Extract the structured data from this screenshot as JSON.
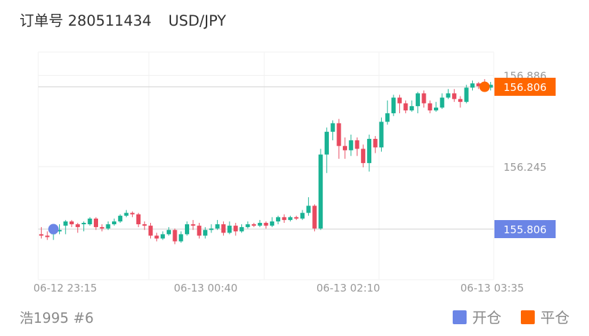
{
  "header": {
    "order_label": "订单号 280511434",
    "symbol": "USD/JPY"
  },
  "footer": {
    "user": "浩1995 #6"
  },
  "legend": {
    "open_label": "开仓",
    "open_color": "#6b85e6",
    "close_label": "平仓",
    "close_color": "#ff6600"
  },
  "chart_data": {
    "type": "candlestick",
    "x_ticks": [
      "06-12 23:15",
      "06-13 00:40",
      "06-13 02:10",
      "06-13 03:35"
    ],
    "y_tick_labels": [
      {
        "value": 156.886,
        "text": "156.886"
      },
      {
        "value": 156.245,
        "text": "156.245"
      }
    ],
    "price_tags": [
      {
        "value": 156.806,
        "text": "156.806",
        "color": "#ff6600",
        "kind": "close"
      },
      {
        "value": 155.806,
        "text": "155.806",
        "color": "#6b85e6",
        "kind": "open"
      }
    ],
    "ylim": [
      155.45,
      157.05
    ],
    "up_color": "#1ab394",
    "down_color": "#e84a5f",
    "open_marker": {
      "index": 2,
      "price": 155.806
    },
    "close_marker": {
      "index": 73,
      "price": 156.806
    },
    "candles": [
      [
        155.77,
        155.76,
        155.82,
        155.74
      ],
      [
        155.76,
        155.75,
        155.79,
        155.73
      ],
      [
        155.77,
        155.79,
        155.81,
        155.73
      ],
      [
        155.79,
        155.8,
        155.84,
        155.77
      ],
      [
        155.83,
        155.86,
        155.87,
        155.77
      ],
      [
        155.86,
        155.84,
        155.87,
        155.82
      ],
      [
        155.84,
        155.82,
        155.85,
        155.78
      ],
      [
        155.84,
        155.85,
        155.86,
        155.79
      ],
      [
        155.84,
        155.88,
        155.89,
        155.83
      ],
      [
        155.88,
        155.82,
        155.89,
        155.8
      ],
      [
        155.82,
        155.81,
        155.84,
        155.79
      ],
      [
        155.81,
        155.84,
        155.86,
        155.8
      ],
      [
        155.84,
        155.86,
        155.88,
        155.83
      ],
      [
        155.86,
        155.9,
        155.91,
        155.85
      ],
      [
        155.9,
        155.92,
        155.94,
        155.89
      ],
      [
        155.92,
        155.91,
        155.93,
        155.89
      ],
      [
        155.91,
        155.84,
        155.92,
        155.82
      ],
      [
        155.84,
        155.83,
        155.86,
        155.8
      ],
      [
        155.83,
        155.76,
        155.85,
        155.74
      ],
      [
        155.76,
        155.74,
        155.78,
        155.72
      ],
      [
        155.74,
        155.77,
        155.79,
        155.73
      ],
      [
        155.77,
        155.8,
        155.82,
        155.76
      ],
      [
        155.8,
        155.72,
        155.81,
        155.7
      ],
      [
        155.72,
        155.77,
        155.79,
        155.71
      ],
      [
        155.77,
        155.84,
        155.86,
        155.76
      ],
      [
        155.84,
        155.83,
        155.87,
        155.8
      ],
      [
        155.83,
        155.76,
        155.85,
        155.74
      ],
      [
        155.76,
        155.8,
        155.82,
        155.74
      ],
      [
        155.8,
        155.81,
        155.84,
        155.78
      ],
      [
        155.81,
        155.84,
        155.87,
        155.8
      ],
      [
        155.84,
        155.78,
        155.86,
        155.76
      ],
      [
        155.78,
        155.83,
        155.86,
        155.77
      ],
      [
        155.83,
        155.79,
        155.85,
        155.76
      ],
      [
        155.79,
        155.82,
        155.84,
        155.78
      ],
      [
        155.82,
        155.84,
        155.86,
        155.81
      ],
      [
        155.84,
        155.83,
        155.85,
        155.82
      ],
      [
        155.83,
        155.85,
        155.87,
        155.82
      ],
      [
        155.85,
        155.83,
        155.86,
        155.81
      ],
      [
        155.83,
        155.86,
        155.89,
        155.82
      ],
      [
        155.86,
        155.89,
        155.9,
        155.84
      ],
      [
        155.89,
        155.87,
        155.91,
        155.85
      ],
      [
        155.87,
        155.89,
        155.9,
        155.86
      ],
      [
        155.89,
        155.88,
        155.9,
        155.87
      ],
      [
        155.88,
        155.92,
        155.94,
        155.87
      ],
      [
        155.92,
        155.97,
        156.03,
        155.9
      ],
      [
        155.97,
        155.81,
        155.98,
        155.79
      ],
      [
        155.81,
        156.33,
        156.37,
        155.8
      ],
      [
        156.33,
        156.49,
        156.52,
        156.2
      ],
      [
        156.49,
        156.55,
        156.57,
        156.43
      ],
      [
        156.55,
        156.39,
        156.58,
        156.3
      ],
      [
        156.39,
        156.36,
        156.45,
        156.3
      ],
      [
        156.36,
        156.43,
        156.47,
        156.32
      ],
      [
        156.43,
        156.37,
        156.45,
        156.32
      ],
      [
        156.37,
        156.27,
        156.4,
        156.24
      ],
      [
        156.27,
        156.44,
        156.47,
        156.21
      ],
      [
        156.44,
        156.38,
        156.46,
        156.34
      ],
      [
        156.38,
        156.56,
        156.59,
        156.35
      ],
      [
        156.56,
        156.62,
        156.71,
        156.54
      ],
      [
        156.62,
        156.73,
        156.75,
        156.6
      ],
      [
        156.73,
        156.69,
        156.75,
        156.62
      ],
      [
        156.69,
        156.64,
        156.71,
        156.62
      ],
      [
        156.64,
        156.67,
        156.71,
        156.63
      ],
      [
        156.67,
        156.76,
        156.77,
        156.62
      ],
      [
        156.76,
        156.69,
        156.78,
        156.66
      ],
      [
        156.69,
        156.64,
        156.71,
        156.62
      ],
      [
        156.64,
        156.66,
        156.7,
        156.63
      ],
      [
        156.66,
        156.73,
        156.76,
        156.65
      ],
      [
        156.73,
        156.76,
        156.79,
        156.72
      ],
      [
        156.76,
        156.72,
        156.79,
        156.7
      ],
      [
        156.72,
        156.7,
        156.74,
        156.66
      ],
      [
        156.7,
        156.8,
        156.82,
        156.69
      ],
      [
        156.8,
        156.83,
        156.85,
        156.78
      ],
      [
        156.83,
        156.81,
        156.84,
        156.79
      ],
      [
        156.81,
        156.8,
        156.86,
        156.78
      ],
      [
        156.8,
        156.82,
        156.84,
        156.78
      ]
    ]
  }
}
